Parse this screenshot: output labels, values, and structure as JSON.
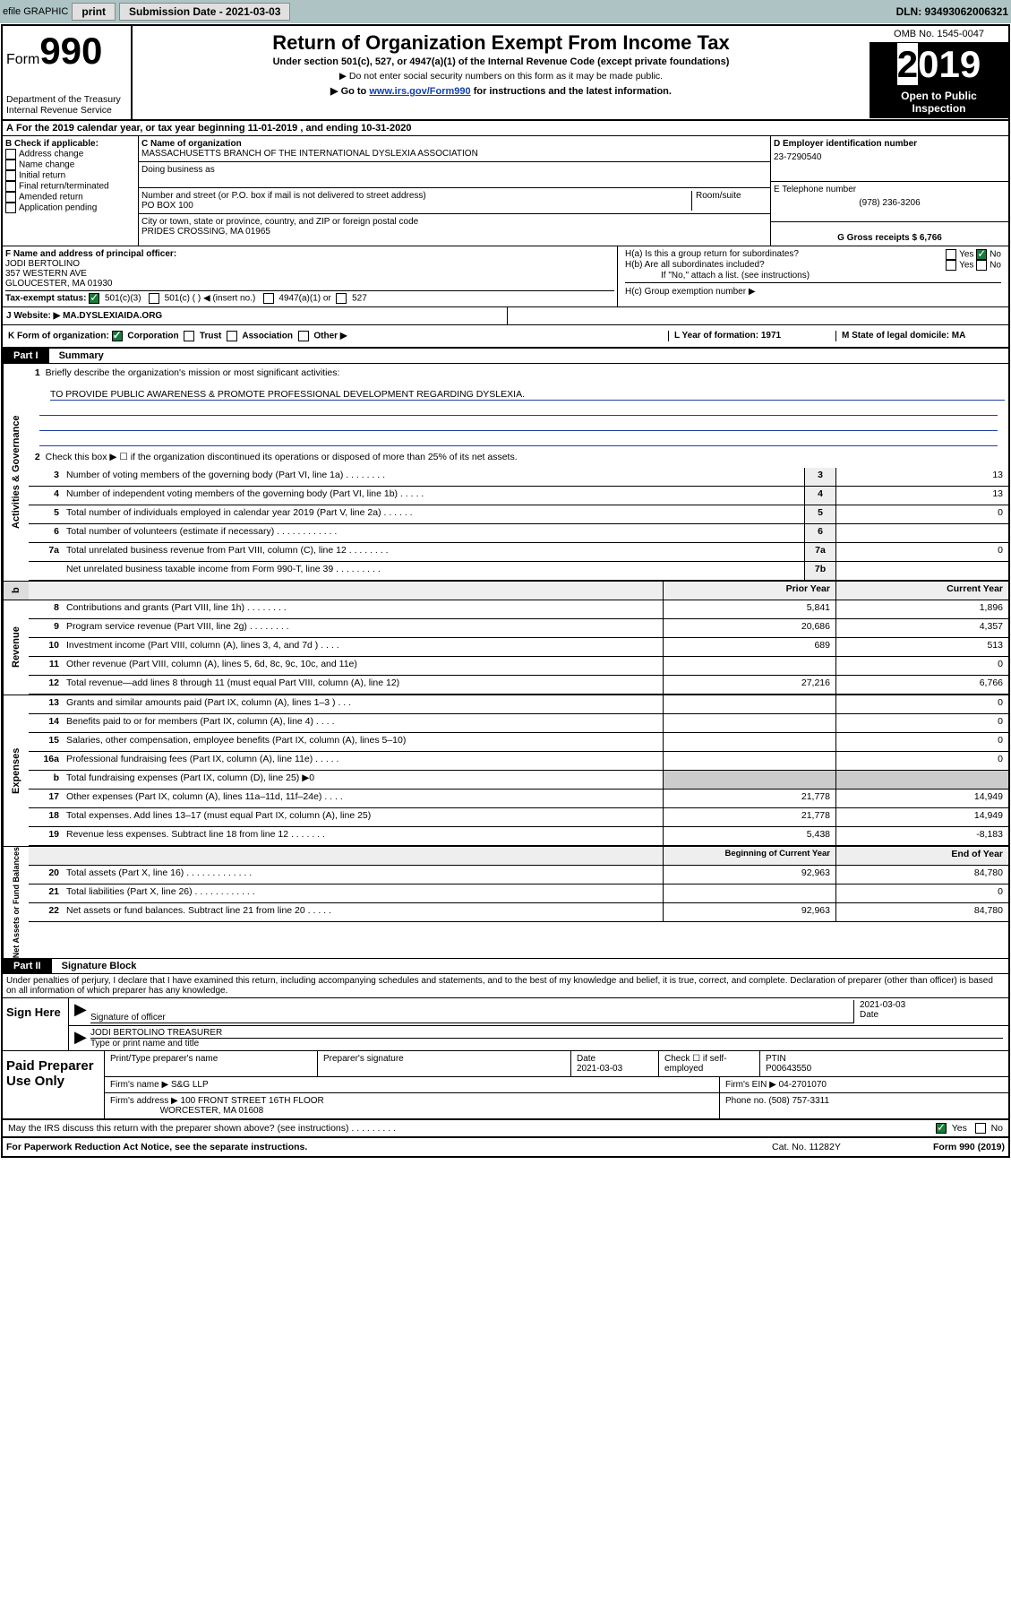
{
  "toolbar": {
    "efile": "efile GRAPHIC",
    "print": "print",
    "sub_label": "Submission Date - 2021-03-03",
    "dln": "DLN: 93493062006321"
  },
  "header": {
    "form": "Form",
    "num": "990",
    "dept": "Department of the Treasury\nInternal Revenue Service",
    "title": "Return of Organization Exempt From Income Tax",
    "sub1": "Under section 501(c), 527, or 4947(a)(1) of the Internal Revenue Code (except private foundations)",
    "sub2": "▶ Do not enter social security numbers on this form as it may be made public.",
    "sub3_pre": "▶ Go to ",
    "sub3_link": "www.irs.gov/Form990",
    "sub3_post": " for instructions and the latest information.",
    "omb": "OMB No. 1545-0047",
    "year_pre": "2",
    "year_post": "019",
    "otp": "Open to Public Inspection"
  },
  "a": {
    "text": "For the 2019 calendar year, or tax year beginning 11-01-2019     , and ending 10-31-2020"
  },
  "b": {
    "label": "B Check if applicable:",
    "items": [
      "Address change",
      "Name change",
      "Initial return",
      "Final return/terminated",
      "Amended return",
      "Application pending"
    ]
  },
  "c": {
    "name_label": "C Name of organization",
    "name": "MASSACHUSETTS BRANCH OF THE INTERNATIONAL DYSLEXIA ASSOCIATION",
    "dba": "Doing business as",
    "street_label": "Number and street (or P.O. box if mail is not delivered to street address)",
    "room": "Room/suite",
    "street": "PO BOX 100",
    "city_label": "City or town, state or province, country, and ZIP or foreign postal code",
    "city": "PRIDES CROSSING, MA  01965"
  },
  "d": {
    "label": "D Employer identification number",
    "ein": "23-7290540"
  },
  "e": {
    "label": "E Telephone number",
    "phone": "(978) 236-3206"
  },
  "g": {
    "label": "G Gross receipts $ 6,766"
  },
  "f": {
    "label": "F  Name and address of principal officer:",
    "name": "JODI BERTOLINO",
    "addr1": "357 WESTERN AVE",
    "addr2": "GLOUCESTER, MA  01930"
  },
  "h": {
    "a": "H(a)  Is this a group return for subordinates?",
    "b": "H(b)  Are all subordinates included?",
    "note": "If \"No,\" attach a list. (see instructions)",
    "c": "H(c)  Group exemption number ▶",
    "yes": "Yes",
    "no": "No"
  },
  "i": {
    "label": "Tax-exempt status:",
    "o1": "501(c)(3)",
    "o2": "501(c) (   ) ◀ (insert no.)",
    "o3": "4947(a)(1) or",
    "o4": "527"
  },
  "j": {
    "label": "J   Website: ▶",
    "val": "MA.DYSLEXIAIDA.ORG"
  },
  "k": {
    "label": "K Form of organization:",
    "o1": "Corporation",
    "o2": "Trust",
    "o3": "Association",
    "o4": "Other ▶"
  },
  "l": {
    "label": "L Year of formation: 1971"
  },
  "m": {
    "label": "M State of legal domicile: MA"
  },
  "part1": {
    "hdr": "Part I",
    "title": "Summary",
    "l1": "Briefly describe the organization's mission or most significant activities:",
    "mission": "TO PROVIDE PUBLIC AWARENESS & PROMOTE PROFESSIONAL DEVELOPMENT REGARDING DYSLEXIA.",
    "l2": "Check this box ▶ ☐  if the organization discontinued its operations or disposed of more than 25% of its net assets.",
    "side1": "Activities & Governance",
    "side2": "Revenue",
    "side3": "Expenses",
    "side4": "Net Assets or Fund Balances",
    "rows_top": [
      {
        "n": "3",
        "d": "Number of voting members of the governing body (Part VI, line 1a)  .    .    .    .    .    .    .    .",
        "b": "3",
        "v": "13"
      },
      {
        "n": "4",
        "d": "Number of independent voting members of the governing body (Part VI, line 1b)  .    .    .    .    .",
        "b": "4",
        "v": "13"
      },
      {
        "n": "5",
        "d": "Total number of individuals employed in calendar year 2019 (Part V, line 2a)  .    .    .    .    .    .",
        "b": "5",
        "v": "0"
      },
      {
        "n": "6",
        "d": "Total number of volunteers (estimate if necessary)  .    .    .    .    .    .    .    .    .    .    .    .",
        "b": "6",
        "v": ""
      },
      {
        "n": "7a",
        "d": "Total unrelated business revenue from Part VIII, column (C), line 12  .    .    .    .    .    .    .    .",
        "b": "7a",
        "v": "0"
      },
      {
        "n": "",
        "d": "Net unrelated business taxable income from Form 990-T, line 39  .    .    .    .    .    .    .    .    .",
        "b": "7b",
        "v": ""
      }
    ],
    "col_prior": "Prior Year",
    "col_current": "Current Year",
    "col_begin": "Beginning of Current Year",
    "col_end": "End of Year",
    "rows_rev": [
      {
        "n": "8",
        "d": "Contributions and grants (Part VIII, line 1h)  .    .    .    .    .    .    .    .",
        "p": "5,841",
        "c": "1,896"
      },
      {
        "n": "9",
        "d": "Program service revenue (Part VIII, line 2g)  .    .    .    .    .    .    .    .",
        "p": "20,686",
        "c": "4,357"
      },
      {
        "n": "10",
        "d": "Investment income (Part VIII, column (A), lines 3, 4, and 7d )  .    .    .    .",
        "p": "689",
        "c": "513"
      },
      {
        "n": "11",
        "d": "Other revenue (Part VIII, column (A), lines 5, 6d, 8c, 9c, 10c, and 11e)",
        "p": "",
        "c": "0"
      },
      {
        "n": "12",
        "d": "Total revenue—add lines 8 through 11 (must equal Part VIII, column (A), line 12)",
        "p": "27,216",
        "c": "6,766"
      }
    ],
    "rows_exp": [
      {
        "n": "13",
        "d": "Grants and similar amounts paid (Part IX, column (A), lines 1–3 )  .    .    .",
        "p": "",
        "c": "0"
      },
      {
        "n": "14",
        "d": "Benefits paid to or for members (Part IX, column (A), line 4)  .    .    .    .",
        "p": "",
        "c": "0"
      },
      {
        "n": "15",
        "d": "Salaries, other compensation, employee benefits (Part IX, column (A), lines 5–10)",
        "p": "",
        "c": "0"
      },
      {
        "n": "16a",
        "d": "Professional fundraising fees (Part IX, column (A), line 11e)  .    .    .    .    .",
        "p": "",
        "c": "0"
      },
      {
        "n": "b",
        "d": "Total fundraising expenses (Part IX, column (D), line 25) ▶0",
        "p": "gray",
        "c": "gray"
      },
      {
        "n": "17",
        "d": "Other expenses (Part IX, column (A), lines 11a–11d, 11f–24e)  .    .    .    .",
        "p": "21,778",
        "c": "14,949"
      },
      {
        "n": "18",
        "d": "Total expenses. Add lines 13–17 (must equal Part IX, column (A), line 25)",
        "p": "21,778",
        "c": "14,949"
      },
      {
        "n": "19",
        "d": "Revenue less expenses. Subtract line 18 from line 12  .    .    .    .    .    .    .",
        "p": "5,438",
        "c": "-8,183"
      }
    ],
    "rows_net": [
      {
        "n": "20",
        "d": "Total assets (Part X, line 16)  .    .    .    .    .    .    .    .    .    .    .    .    .",
        "p": "92,963",
        "c": "84,780"
      },
      {
        "n": "21",
        "d": "Total liabilities (Part X, line 26)  .    .    .    .    .    .    .    .    .    .    .    .",
        "p": "",
        "c": "0"
      },
      {
        "n": "22",
        "d": "Net assets or fund balances. Subtract line 21 from line 20  .    .    .    .    .",
        "p": "92,963",
        "c": "84,780"
      }
    ]
  },
  "part2": {
    "hdr": "Part II",
    "title": "Signature Block",
    "decl": "Under penalties of perjury, I declare that I have examined this return, including accompanying schedules and statements, and to the best of my knowledge and belief, it is true, correct, and complete. Declaration of preparer (other than officer) is based on all information of which preparer has any knowledge."
  },
  "sign": {
    "left": "Sign Here",
    "sig_label": "Signature of officer",
    "date": "2021-03-03",
    "date_label": "Date",
    "name": "JODI BERTOLINO  TREASURER",
    "name_label": "Type or print name and title"
  },
  "paid": {
    "left": "Paid Preparer Use Only",
    "h1": "Print/Type preparer's name",
    "h2": "Preparer's signature",
    "h3": "Date",
    "date": "2021-03-03",
    "h4": "Check ☐ if self-employed",
    "h5": "PTIN",
    "ptin": "P00643550",
    "firm_l": "Firm's name     ▶",
    "firm": "S&G LLP",
    "ein_l": "Firm's EIN ▶ 04-2701070",
    "addr_l": "Firm's address ▶",
    "addr": "100 FRONT STREET 16TH FLOOR\nWORCESTER, MA  01608",
    "phone_l": "Phone no. (508) 757-3311"
  },
  "discuss": {
    "q": "May the IRS discuss this return with the preparer shown above? (see instructions)   .    .    .    .    .    .    .    .    .",
    "yes": "Yes",
    "no": "No"
  },
  "footer": {
    "l": "For Paperwork Reduction Act Notice, see the separate instructions.",
    "m": "Cat. No. 11282Y",
    "r": "Form 990 (2019)"
  }
}
